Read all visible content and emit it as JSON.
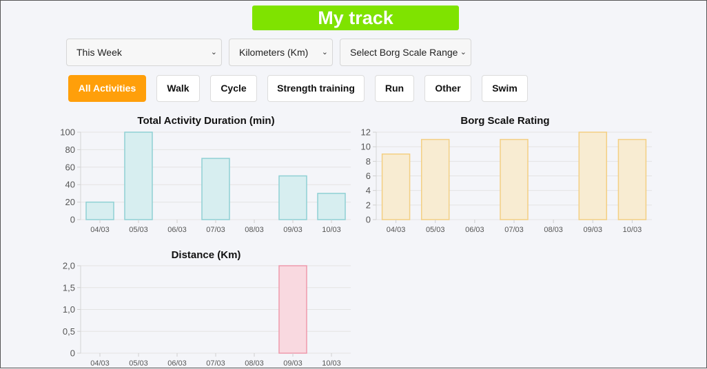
{
  "app": {
    "title": "My track"
  },
  "filters": {
    "period": "This Week",
    "unit": "Kilometers (Km)",
    "borg_range": "Select Borg Scale Range"
  },
  "activity_buttons": [
    {
      "label": "All Activities",
      "active": true
    },
    {
      "label": "Walk",
      "active": false
    },
    {
      "label": "Cycle",
      "active": false
    },
    {
      "label": "Strength training",
      "active": false
    },
    {
      "label": "Run",
      "active": false
    },
    {
      "label": "Other",
      "active": false
    },
    {
      "label": "Swim",
      "active": false
    }
  ],
  "colors": {
    "title_bg": "#7fe300",
    "active_button": "#ff9f0a",
    "duration_fill": "#d7eef0",
    "duration_stroke": "#8fd0d4",
    "borg_fill": "#f8ecd2",
    "borg_stroke": "#f3cf83",
    "distance_fill": "#f9d9e0",
    "distance_stroke": "#ee9aac"
  },
  "chart_data": [
    {
      "id": "duration",
      "type": "bar",
      "title": "Total Activity Duration (min)",
      "categories": [
        "04/03",
        "05/03",
        "06/03",
        "07/03",
        "08/03",
        "09/03",
        "10/03"
      ],
      "values": [
        20,
        100,
        0,
        70,
        0,
        50,
        30
      ],
      "ylim": [
        0,
        100
      ],
      "yticks": [
        "0",
        "20",
        "40",
        "60",
        "80",
        "100"
      ],
      "grid": true
    },
    {
      "id": "borg",
      "type": "bar",
      "title": "Borg Scale Rating",
      "categories": [
        "04/03",
        "05/03",
        "06/03",
        "07/03",
        "08/03",
        "09/03",
        "10/03"
      ],
      "values": [
        9,
        11,
        0,
        11,
        0,
        12,
        11
      ],
      "ylim": [
        0,
        12
      ],
      "yticks": [
        "0",
        "2",
        "4",
        "6",
        "8",
        "10",
        "12"
      ],
      "grid": true
    },
    {
      "id": "distance",
      "type": "bar",
      "title": "Distance (Km)",
      "categories": [
        "04/03",
        "05/03",
        "06/03",
        "07/03",
        "08/03",
        "09/03",
        "10/03"
      ],
      "values": [
        0,
        0,
        0,
        0,
        0,
        2.0,
        0
      ],
      "ylim": [
        0,
        2
      ],
      "yticks": [
        "0",
        "0,5",
        "1,0",
        "1,5",
        "2,0"
      ],
      "grid": true
    }
  ]
}
